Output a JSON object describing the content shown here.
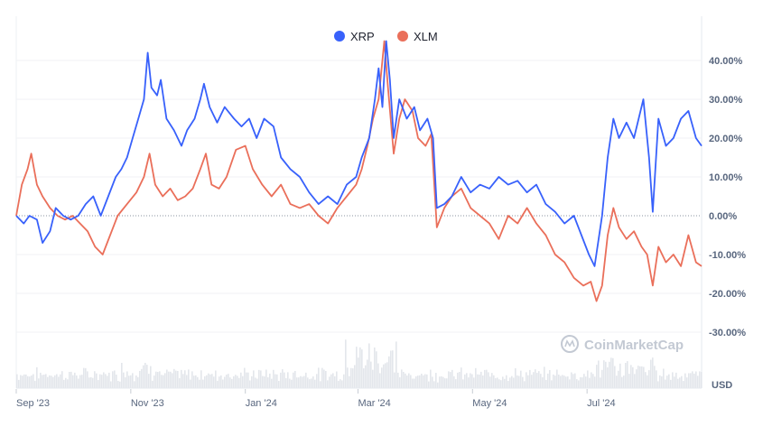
{
  "chart_data": {
    "type": "line",
    "title": "",
    "xlabel": "",
    "ylabel": "",
    "unit_label": "USD",
    "watermark": "CoinMarketCap",
    "legend_position": "top-center",
    "grid": true,
    "x_domain": [
      "2023-09-01",
      "2024-08-31"
    ],
    "ylim": [
      -0.3,
      0.5
    ],
    "y_ticks": [
      -0.3,
      -0.2,
      -0.1,
      0.0,
      0.1,
      0.2,
      0.3,
      0.4
    ],
    "y_tick_labels": [
      "-30.00%",
      "-20.00%",
      "-10.00%",
      "0.00%",
      "10.00%",
      "20.00%",
      "30.00%",
      "40.00%"
    ],
    "x_ticks": [
      {
        "date": "2023-09-01",
        "label": "Sep '23"
      },
      {
        "date": "2023-11-01",
        "label": "Nov '23"
      },
      {
        "date": "2024-01-01",
        "label": "Jan '24"
      },
      {
        "date": "2024-03-01",
        "label": "Mar '24"
      },
      {
        "date": "2024-05-01",
        "label": "May '24"
      },
      {
        "date": "2024-07-01",
        "label": "Jul '24"
      }
    ],
    "series": [
      {
        "name": "XRP",
        "color": "#3861fb",
        "points": [
          [
            "2023-09-01",
            0.0
          ],
          [
            "2023-09-05",
            -0.02
          ],
          [
            "2023-09-08",
            0.0
          ],
          [
            "2023-09-12",
            -0.01
          ],
          [
            "2023-09-15",
            -0.07
          ],
          [
            "2023-09-19",
            -0.04
          ],
          [
            "2023-09-22",
            0.02
          ],
          [
            "2023-09-26",
            0.0
          ],
          [
            "2023-09-30",
            -0.01
          ],
          [
            "2023-10-04",
            0.0
          ],
          [
            "2023-10-08",
            0.03
          ],
          [
            "2023-10-12",
            0.05
          ],
          [
            "2023-10-16",
            0.0
          ],
          [
            "2023-10-20",
            0.05
          ],
          [
            "2023-10-24",
            0.1
          ],
          [
            "2023-10-27",
            0.12
          ],
          [
            "2023-10-30",
            0.15
          ],
          [
            "2023-11-02",
            0.2
          ],
          [
            "2023-11-05",
            0.25
          ],
          [
            "2023-11-08",
            0.3
          ],
          [
            "2023-11-10",
            0.42
          ],
          [
            "2023-11-12",
            0.33
          ],
          [
            "2023-11-15",
            0.31
          ],
          [
            "2023-11-17",
            0.35
          ],
          [
            "2023-11-20",
            0.25
          ],
          [
            "2023-11-24",
            0.22
          ],
          [
            "2023-11-28",
            0.18
          ],
          [
            "2023-12-01",
            0.22
          ],
          [
            "2023-12-05",
            0.25
          ],
          [
            "2023-12-08",
            0.3
          ],
          [
            "2023-12-10",
            0.34
          ],
          [
            "2023-12-13",
            0.28
          ],
          [
            "2023-12-17",
            0.24
          ],
          [
            "2023-12-21",
            0.28
          ],
          [
            "2023-12-26",
            0.25
          ],
          [
            "2023-12-30",
            0.23
          ],
          [
            "2024-01-03",
            0.25
          ],
          [
            "2024-01-07",
            0.2
          ],
          [
            "2024-01-11",
            0.25
          ],
          [
            "2024-01-16",
            0.23
          ],
          [
            "2024-01-20",
            0.15
          ],
          [
            "2024-01-25",
            0.12
          ],
          [
            "2024-01-30",
            0.1
          ],
          [
            "2024-02-04",
            0.06
          ],
          [
            "2024-02-09",
            0.03
          ],
          [
            "2024-02-14",
            0.05
          ],
          [
            "2024-02-19",
            0.03
          ],
          [
            "2024-02-24",
            0.08
          ],
          [
            "2024-02-29",
            0.1
          ],
          [
            "2024-03-03",
            0.15
          ],
          [
            "2024-03-07",
            0.2
          ],
          [
            "2024-03-10",
            0.3
          ],
          [
            "2024-03-12",
            0.38
          ],
          [
            "2024-03-14",
            0.28
          ],
          [
            "2024-03-16",
            0.45
          ],
          [
            "2024-03-18",
            0.35
          ],
          [
            "2024-03-20",
            0.2
          ],
          [
            "2024-03-23",
            0.3
          ],
          [
            "2024-03-27",
            0.25
          ],
          [
            "2024-03-31",
            0.28
          ],
          [
            "2024-04-03",
            0.22
          ],
          [
            "2024-04-07",
            0.25
          ],
          [
            "2024-04-10",
            0.2
          ],
          [
            "2024-04-12",
            0.02
          ],
          [
            "2024-04-16",
            0.03
          ],
          [
            "2024-04-20",
            0.05
          ],
          [
            "2024-04-25",
            0.1
          ],
          [
            "2024-04-30",
            0.06
          ],
          [
            "2024-05-05",
            0.08
          ],
          [
            "2024-05-10",
            0.07
          ],
          [
            "2024-05-15",
            0.1
          ],
          [
            "2024-05-20",
            0.08
          ],
          [
            "2024-05-25",
            0.09
          ],
          [
            "2024-05-30",
            0.06
          ],
          [
            "2024-06-04",
            0.08
          ],
          [
            "2024-06-09",
            0.03
          ],
          [
            "2024-06-14",
            0.01
          ],
          [
            "2024-06-19",
            -0.02
          ],
          [
            "2024-06-24",
            0.0
          ],
          [
            "2024-06-28",
            -0.05
          ],
          [
            "2024-07-02",
            -0.1
          ],
          [
            "2024-07-05",
            -0.13
          ],
          [
            "2024-07-09",
            0.0
          ],
          [
            "2024-07-12",
            0.15
          ],
          [
            "2024-07-15",
            0.25
          ],
          [
            "2024-07-18",
            0.2
          ],
          [
            "2024-07-22",
            0.24
          ],
          [
            "2024-07-26",
            0.2
          ],
          [
            "2024-07-31",
            0.3
          ],
          [
            "2024-08-03",
            0.15
          ],
          [
            "2024-08-05",
            0.01
          ],
          [
            "2024-08-08",
            0.25
          ],
          [
            "2024-08-12",
            0.18
          ],
          [
            "2024-08-16",
            0.2
          ],
          [
            "2024-08-20",
            0.25
          ],
          [
            "2024-08-24",
            0.27
          ],
          [
            "2024-08-28",
            0.2
          ],
          [
            "2024-08-31",
            0.18
          ]
        ]
      },
      {
        "name": "XLM",
        "color": "#ea6f5a",
        "points": [
          [
            "2023-09-01",
            0.0
          ],
          [
            "2023-09-04",
            0.08
          ],
          [
            "2023-09-07",
            0.12
          ],
          [
            "2023-09-09",
            0.16
          ],
          [
            "2023-09-12",
            0.08
          ],
          [
            "2023-09-15",
            0.05
          ],
          [
            "2023-09-19",
            0.02
          ],
          [
            "2023-09-23",
            0.0
          ],
          [
            "2023-09-27",
            -0.01
          ],
          [
            "2023-10-01",
            0.0
          ],
          [
            "2023-10-05",
            -0.02
          ],
          [
            "2023-10-09",
            -0.04
          ],
          [
            "2023-10-13",
            -0.08
          ],
          [
            "2023-10-17",
            -0.1
          ],
          [
            "2023-10-21",
            -0.05
          ],
          [
            "2023-10-25",
            0.0
          ],
          [
            "2023-10-30",
            0.03
          ],
          [
            "2023-11-04",
            0.06
          ],
          [
            "2023-11-08",
            0.1
          ],
          [
            "2023-11-11",
            0.16
          ],
          [
            "2023-11-14",
            0.08
          ],
          [
            "2023-11-18",
            0.05
          ],
          [
            "2023-11-22",
            0.07
          ],
          [
            "2023-11-26",
            0.04
          ],
          [
            "2023-11-30",
            0.05
          ],
          [
            "2023-12-04",
            0.07
          ],
          [
            "2023-12-08",
            0.12
          ],
          [
            "2023-12-11",
            0.16
          ],
          [
            "2023-12-14",
            0.08
          ],
          [
            "2023-12-18",
            0.07
          ],
          [
            "2023-12-22",
            0.1
          ],
          [
            "2023-12-27",
            0.17
          ],
          [
            "2024-01-01",
            0.18
          ],
          [
            "2024-01-05",
            0.12
          ],
          [
            "2024-01-10",
            0.08
          ],
          [
            "2024-01-15",
            0.05
          ],
          [
            "2024-01-20",
            0.08
          ],
          [
            "2024-01-25",
            0.03
          ],
          [
            "2024-01-30",
            0.02
          ],
          [
            "2024-02-04",
            0.03
          ],
          [
            "2024-02-09",
            0.0
          ],
          [
            "2024-02-14",
            -0.02
          ],
          [
            "2024-02-19",
            0.02
          ],
          [
            "2024-02-24",
            0.05
          ],
          [
            "2024-02-29",
            0.08
          ],
          [
            "2024-03-03",
            0.12
          ],
          [
            "2024-03-06",
            0.18
          ],
          [
            "2024-03-09",
            0.25
          ],
          [
            "2024-03-12",
            0.3
          ],
          [
            "2024-03-15",
            0.45
          ],
          [
            "2024-03-17",
            0.33
          ],
          [
            "2024-03-20",
            0.16
          ],
          [
            "2024-03-23",
            0.25
          ],
          [
            "2024-03-26",
            0.3
          ],
          [
            "2024-03-30",
            0.27
          ],
          [
            "2024-04-02",
            0.2
          ],
          [
            "2024-04-06",
            0.18
          ],
          [
            "2024-04-09",
            0.21
          ],
          [
            "2024-04-12",
            -0.03
          ],
          [
            "2024-04-16",
            0.02
          ],
          [
            "2024-04-20",
            0.05
          ],
          [
            "2024-04-25",
            0.07
          ],
          [
            "2024-04-30",
            0.02
          ],
          [
            "2024-05-05",
            0.0
          ],
          [
            "2024-05-10",
            -0.02
          ],
          [
            "2024-05-15",
            -0.06
          ],
          [
            "2024-05-20",
            0.0
          ],
          [
            "2024-05-25",
            -0.02
          ],
          [
            "2024-05-30",
            0.02
          ],
          [
            "2024-06-04",
            -0.02
          ],
          [
            "2024-06-09",
            -0.05
          ],
          [
            "2024-06-14",
            -0.1
          ],
          [
            "2024-06-19",
            -0.12
          ],
          [
            "2024-06-24",
            -0.16
          ],
          [
            "2024-06-29",
            -0.18
          ],
          [
            "2024-07-03",
            -0.17
          ],
          [
            "2024-07-06",
            -0.22
          ],
          [
            "2024-07-09",
            -0.18
          ],
          [
            "2024-07-12",
            -0.05
          ],
          [
            "2024-07-15",
            0.02
          ],
          [
            "2024-07-18",
            -0.03
          ],
          [
            "2024-07-22",
            -0.06
          ],
          [
            "2024-07-26",
            -0.04
          ],
          [
            "2024-07-30",
            -0.08
          ],
          [
            "2024-08-02",
            -0.1
          ],
          [
            "2024-08-05",
            -0.18
          ],
          [
            "2024-08-08",
            -0.08
          ],
          [
            "2024-08-12",
            -0.12
          ],
          [
            "2024-08-16",
            -0.1
          ],
          [
            "2024-08-20",
            -0.13
          ],
          [
            "2024-08-24",
            -0.05
          ],
          [
            "2024-08-28",
            -0.12
          ],
          [
            "2024-08-31",
            -0.13
          ]
        ]
      }
    ]
  }
}
